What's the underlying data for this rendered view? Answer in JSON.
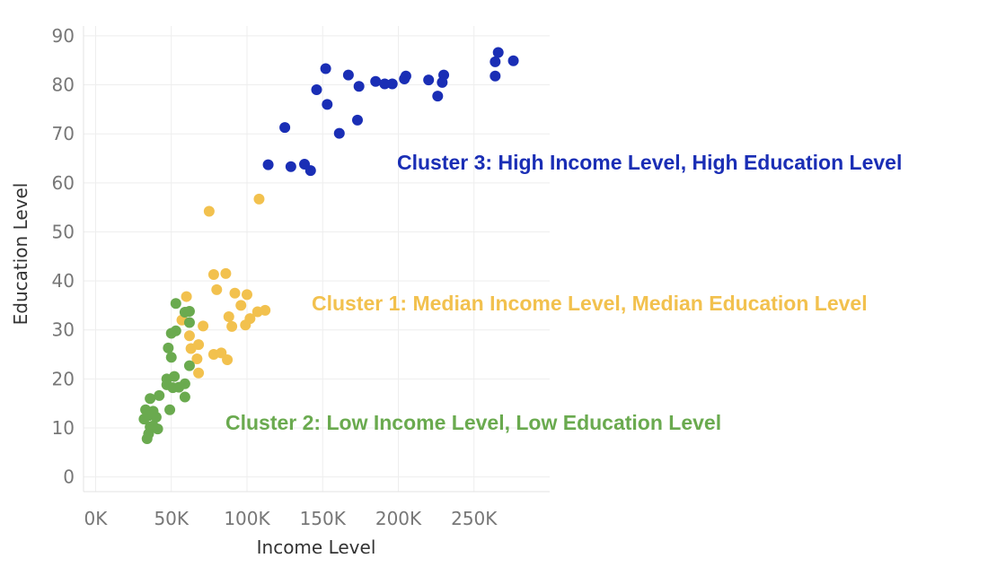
{
  "chart_data": {
    "type": "scatter",
    "title": "",
    "xlabel": "Income Level",
    "ylabel": "Education Level",
    "xlim": [
      -8000,
      300000
    ],
    "ylim": [
      -3,
      92
    ],
    "x_ticks": [
      0,
      50000,
      100000,
      150000,
      200000,
      250000
    ],
    "x_tick_labels": [
      "0K",
      "50K",
      "100K",
      "150K",
      "200K",
      "250K"
    ],
    "y_ticks": [
      0,
      10,
      20,
      30,
      40,
      50,
      60,
      70,
      80,
      90
    ],
    "y_tick_labels": [
      "0",
      "10",
      "20",
      "30",
      "40",
      "50",
      "60",
      "70",
      "80",
      "90"
    ],
    "grid": true,
    "legend": "none",
    "annotations": [
      {
        "text": "Cluster 3: High Income Level, High Education Level",
        "color": "#1a2eb5",
        "series": 0
      },
      {
        "text": "Cluster 1: Median Income Level, Median Education Level",
        "color": "#f2c14e",
        "series": 1
      },
      {
        "text": "Cluster 2: Low Income Level, Low Education Level",
        "color": "#6aaa4f",
        "series": 2
      }
    ],
    "series": [
      {
        "color": "#1a2eb5",
        "points": [
          [
            114000,
            63.7
          ],
          [
            125000,
            71.3
          ],
          [
            129000,
            63.3
          ],
          [
            138000,
            63.8
          ],
          [
            142000,
            62.5
          ],
          [
            146000,
            79
          ],
          [
            152000,
            83.3
          ],
          [
            153000,
            76
          ],
          [
            161000,
            70.1
          ],
          [
            167000,
            82
          ],
          [
            173000,
            72.8
          ],
          [
            174000,
            79.7
          ],
          [
            185000,
            80.7
          ],
          [
            191000,
            80.2
          ],
          [
            196000,
            80.2
          ],
          [
            204000,
            81.2
          ],
          [
            205000,
            81.8
          ],
          [
            220000,
            81
          ],
          [
            226000,
            77.7
          ],
          [
            229000,
            80.5
          ],
          [
            230000,
            82
          ],
          [
            264000,
            84.7
          ],
          [
            264000,
            81.8
          ],
          [
            266000,
            86.6
          ],
          [
            276000,
            84.9
          ]
        ]
      },
      {
        "color": "#f2c14e",
        "points": [
          [
            75000,
            54.2
          ],
          [
            108000,
            56.7
          ],
          [
            78000,
            41.3
          ],
          [
            86000,
            41.5
          ],
          [
            80000,
            38.2
          ],
          [
            92000,
            37.5
          ],
          [
            100000,
            37.2
          ],
          [
            60000,
            36.8
          ],
          [
            96000,
            35
          ],
          [
            57000,
            32
          ],
          [
            88000,
            32.7
          ],
          [
            102000,
            32.3
          ],
          [
            107000,
            33.7
          ],
          [
            112000,
            34
          ],
          [
            90000,
            30.7
          ],
          [
            99000,
            31
          ],
          [
            71000,
            30.8
          ],
          [
            62000,
            28.8
          ],
          [
            68000,
            27
          ],
          [
            63000,
            26.2
          ],
          [
            78000,
            25
          ],
          [
            83000,
            25.3
          ],
          [
            67000,
            24.1
          ],
          [
            87000,
            23.9
          ],
          [
            68000,
            21.2
          ]
        ]
      },
      {
        "color": "#6aaa4f",
        "points": [
          [
            53000,
            35.4
          ],
          [
            59000,
            33.6
          ],
          [
            62000,
            33.8
          ],
          [
            62000,
            31.5
          ],
          [
            53000,
            29.8
          ],
          [
            50000,
            29.3
          ],
          [
            48000,
            26.3
          ],
          [
            50000,
            24.4
          ],
          [
            62000,
            22.7
          ],
          [
            47000,
            20
          ],
          [
            52000,
            20.5
          ],
          [
            47000,
            18.8
          ],
          [
            51000,
            18.2
          ],
          [
            55000,
            18.3
          ],
          [
            59000,
            19
          ],
          [
            42000,
            16.6
          ],
          [
            59000,
            16.3
          ],
          [
            36000,
            16
          ],
          [
            49000,
            13.7
          ],
          [
            33000,
            13.7
          ],
          [
            38000,
            13.4
          ],
          [
            35000,
            12.5
          ],
          [
            32000,
            11.8
          ],
          [
            40000,
            12.2
          ],
          [
            38000,
            10.4
          ],
          [
            36000,
            10.2
          ],
          [
            41000,
            9.8
          ],
          [
            35000,
            8.8
          ],
          [
            34000,
            7.8
          ]
        ]
      }
    ]
  }
}
